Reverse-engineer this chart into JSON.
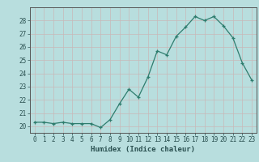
{
  "title": "",
  "xlabel": "Humidex (Indice chaleur)",
  "ylabel": "",
  "x": [
    0,
    1,
    2,
    3,
    4,
    5,
    6,
    7,
    8,
    9,
    10,
    11,
    12,
    13,
    14,
    15,
    16,
    17,
    18,
    19,
    20,
    21,
    22,
    23
  ],
  "y": [
    20.3,
    20.3,
    20.2,
    20.3,
    20.2,
    20.2,
    20.2,
    19.9,
    20.5,
    21.7,
    22.8,
    22.2,
    23.7,
    25.7,
    25.4,
    26.8,
    27.5,
    28.3,
    28.0,
    28.3,
    27.6,
    26.7,
    24.8,
    23.5
  ],
  "line_color": "#2e7d6e",
  "marker": "+",
  "background_color": "#b8dede",
  "grid_color": "#c8b8b8",
  "axis_color": "#555555",
  "ylim": [
    19.5,
    29.0
  ],
  "xlim": [
    -0.5,
    23.5
  ],
  "yticks": [
    20,
    21,
    22,
    23,
    24,
    25,
    26,
    27,
    28
  ],
  "xticks": [
    0,
    1,
    2,
    3,
    4,
    5,
    6,
    7,
    8,
    9,
    10,
    11,
    12,
    13,
    14,
    15,
    16,
    17,
    18,
    19,
    20,
    21,
    22,
    23
  ]
}
